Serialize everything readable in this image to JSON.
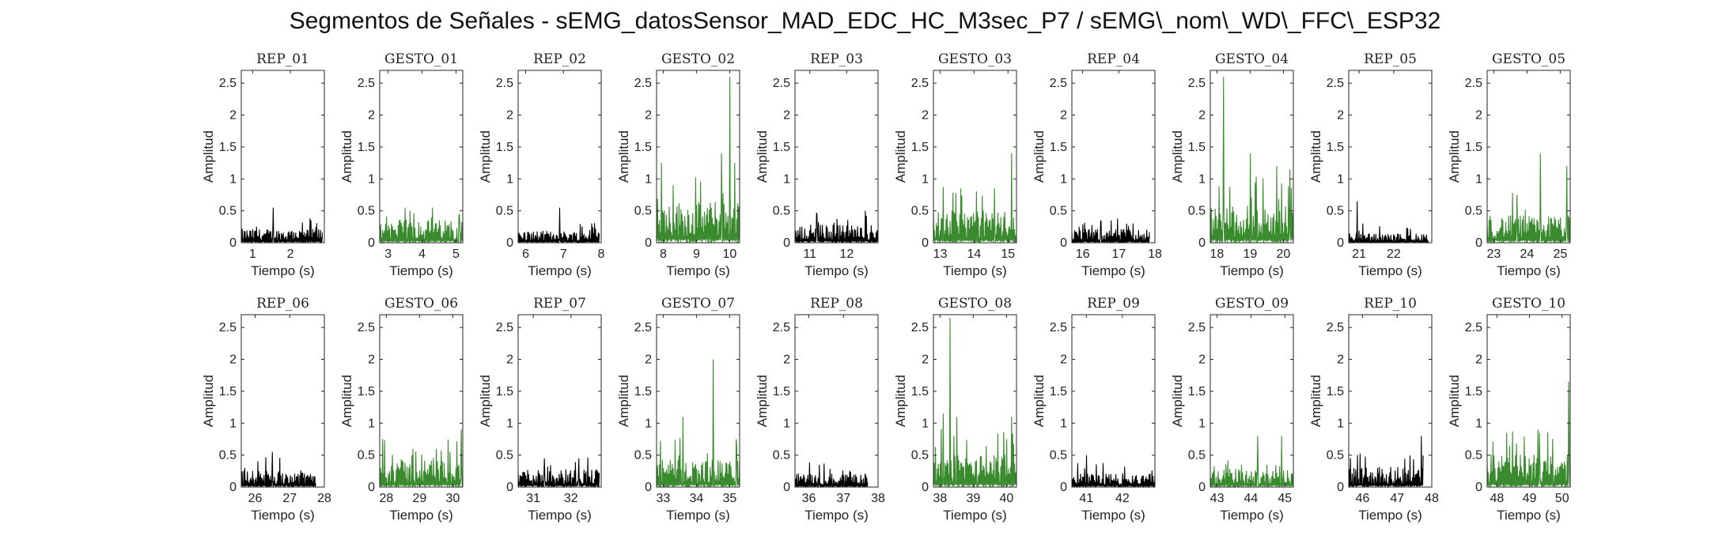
{
  "figure": {
    "title": "Segmentos de Señales - sEMG_datosSensor_MAD_EDC_HC_M3sec_P7 / sEMG\\_nom\\_WD\\_FFC\\_ESP32"
  },
  "colors": {
    "rep": "#000000",
    "gesto": "#3a8a2e",
    "axes": "#262626"
  },
  "chart_data": [
    {
      "type": "line",
      "title": "REP_01",
      "xlabel": "Tiempo (s)",
      "ylabel": "Amplitud",
      "xlim": [
        0.7,
        2.9
      ],
      "ylim": [
        0,
        2.7
      ],
      "xticks": [
        1,
        2
      ],
      "yticks": [
        0,
        0.5,
        1,
        1.5,
        2,
        2.5
      ],
      "series": [
        {
          "color": "#000000",
          "x_range": [
            0.7,
            2.85
          ],
          "baseline": 0.15,
          "peaks": [
            {
              "x": 1.55,
              "y": 0.55
            },
            {
              "x": 2.55,
              "y": 0.35
            }
          ]
        }
      ]
    },
    {
      "type": "line",
      "title": "GESTO_01",
      "xlabel": "Tiempo (s)",
      "ylabel": "Amplitud",
      "xlim": [
        2.75,
        5.2
      ],
      "ylim": [
        0,
        2.7
      ],
      "xticks": [
        3,
        4,
        5
      ],
      "yticks": [
        0,
        0.5,
        1,
        1.5,
        2,
        2.5
      ],
      "series": [
        {
          "color": "#3a8a2e",
          "x_range": [
            2.75,
            5.2
          ],
          "baseline": 0.25,
          "peaks": [
            {
              "x": 3.5,
              "y": 0.55
            },
            {
              "x": 4.3,
              "y": 0.55
            },
            {
              "x": 5.1,
              "y": 0.45
            }
          ]
        }
      ]
    },
    {
      "type": "line",
      "title": "REP_02",
      "xlabel": "Tiempo (s)",
      "ylabel": "Amplitud",
      "xlim": [
        5.8,
        8.0
      ],
      "ylim": [
        0,
        2.7
      ],
      "xticks": [
        6,
        7,
        8
      ],
      "yticks": [
        0,
        0.5,
        1,
        1.5,
        2,
        2.5
      ],
      "series": [
        {
          "color": "#000000",
          "x_range": [
            5.8,
            7.95
          ],
          "baseline": 0.13,
          "peaks": [
            {
              "x": 6.9,
              "y": 0.55
            }
          ]
        }
      ]
    },
    {
      "type": "line",
      "title": "GESTO_02",
      "xlabel": "Tiempo (s)",
      "ylabel": "Amplitud",
      "xlim": [
        7.8,
        10.3
      ],
      "ylim": [
        0,
        2.7
      ],
      "xticks": [
        8,
        9,
        10
      ],
      "yticks": [
        0,
        0.5,
        1,
        1.5,
        2,
        2.5
      ],
      "series": [
        {
          "color": "#3a8a2e",
          "x_range": [
            7.8,
            10.3
          ],
          "baseline": 0.45,
          "peaks": [
            {
              "x": 7.95,
              "y": 1.25
            },
            {
              "x": 8.3,
              "y": 0.9
            },
            {
              "x": 9.75,
              "y": 1.4
            },
            {
              "x": 10.0,
              "y": 2.6
            },
            {
              "x": 10.15,
              "y": 1.25
            }
          ]
        }
      ]
    },
    {
      "type": "line",
      "title": "REP_03",
      "xlabel": "Tiempo (s)",
      "ylabel": "Amplitud",
      "xlim": [
        10.6,
        12.85
      ],
      "ylim": [
        0,
        2.7
      ],
      "xticks": [
        11,
        12
      ],
      "yticks": [
        0,
        0.5,
        1,
        1.5,
        2,
        2.5
      ],
      "series": [
        {
          "color": "#000000",
          "x_range": [
            10.6,
            12.85
          ],
          "baseline": 0.2,
          "peaks": [
            {
              "x": 11.2,
              "y": 0.45
            },
            {
              "x": 12.5,
              "y": 0.5
            }
          ]
        }
      ]
    },
    {
      "type": "line",
      "title": "GESTO_03",
      "xlabel": "Tiempo (s)",
      "ylabel": "Amplitud",
      "xlim": [
        12.8,
        15.25
      ],
      "ylim": [
        0,
        2.7
      ],
      "xticks": [
        13,
        14,
        15
      ],
      "yticks": [
        0,
        0.5,
        1,
        1.5,
        2,
        2.5
      ],
      "series": [
        {
          "color": "#3a8a2e",
          "x_range": [
            12.8,
            15.25
          ],
          "baseline": 0.35,
          "peaks": [
            {
              "x": 13.6,
              "y": 0.85
            },
            {
              "x": 14.6,
              "y": 0.85
            },
            {
              "x": 15.1,
              "y": 1.4
            }
          ]
        }
      ]
    },
    {
      "type": "line",
      "title": "REP_04",
      "xlabel": "Tiempo (s)",
      "ylabel": "Amplitud",
      "xlim": [
        15.7,
        18.0
      ],
      "ylim": [
        0,
        2.7
      ],
      "xticks": [
        16,
        17,
        18
      ],
      "yticks": [
        0,
        0.5,
        1,
        1.5,
        2,
        2.5
      ],
      "series": [
        {
          "color": "#000000",
          "x_range": [
            15.7,
            17.85
          ],
          "baseline": 0.15,
          "peaks": [
            {
              "x": 16.5,
              "y": 0.35
            },
            {
              "x": 17.4,
              "y": 0.3
            }
          ]
        }
      ]
    },
    {
      "type": "line",
      "title": "GESTO_04",
      "xlabel": "Tiempo (s)",
      "ylabel": "Amplitud",
      "xlim": [
        17.8,
        20.3
      ],
      "ylim": [
        0,
        2.7
      ],
      "xticks": [
        18,
        19,
        20
      ],
      "yticks": [
        0,
        0.5,
        1,
        1.5,
        2,
        2.5
      ],
      "series": [
        {
          "color": "#3a8a2e",
          "x_range": [
            17.8,
            20.3
          ],
          "baseline": 0.4,
          "peaks": [
            {
              "x": 18.2,
              "y": 2.6
            },
            {
              "x": 19.0,
              "y": 1.4
            },
            {
              "x": 19.8,
              "y": 1.2
            },
            {
              "x": 20.2,
              "y": 1.15
            }
          ]
        }
      ]
    },
    {
      "type": "line",
      "title": "REP_05",
      "xlabel": "Tiempo (s)",
      "ylabel": "Amplitud",
      "xlim": [
        20.7,
        23.1
      ],
      "ylim": [
        0,
        2.7
      ],
      "xticks": [
        21,
        22
      ],
      "yticks": [
        0,
        0.5,
        1,
        1.5,
        2,
        2.5
      ],
      "series": [
        {
          "color": "#000000",
          "x_range": [
            20.7,
            23.0
          ],
          "baseline": 0.1,
          "peaks": [
            {
              "x": 20.95,
              "y": 0.65
            },
            {
              "x": 21.1,
              "y": 0.3
            }
          ]
        }
      ]
    },
    {
      "type": "line",
      "title": "GESTO_05",
      "xlabel": "Tiempo (s)",
      "ylabel": "Amplitud",
      "xlim": [
        22.8,
        25.3
      ],
      "ylim": [
        0,
        2.7
      ],
      "xticks": [
        23,
        24,
        25
      ],
      "yticks": [
        0,
        0.5,
        1,
        1.5,
        2,
        2.5
      ],
      "series": [
        {
          "color": "#3a8a2e",
          "x_range": [
            22.8,
            25.3
          ],
          "baseline": 0.3,
          "peaks": [
            {
              "x": 23.7,
              "y": 0.75
            },
            {
              "x": 24.4,
              "y": 1.4
            },
            {
              "x": 25.2,
              "y": 1.2
            }
          ]
        }
      ]
    },
    {
      "type": "line",
      "title": "REP_06",
      "xlabel": "Tiempo (s)",
      "ylabel": "Amplitud",
      "xlim": [
        25.6,
        28.0
      ],
      "ylim": [
        0,
        2.7
      ],
      "xticks": [
        26,
        27,
        28
      ],
      "yticks": [
        0,
        0.5,
        1,
        1.5,
        2,
        2.5
      ],
      "series": [
        {
          "color": "#000000",
          "x_range": [
            25.6,
            27.75
          ],
          "baseline": 0.18,
          "peaks": [
            {
              "x": 26.5,
              "y": 0.55
            }
          ]
        }
      ]
    },
    {
      "type": "line",
      "title": "GESTO_06",
      "xlabel": "Tiempo (s)",
      "ylabel": "Amplitud",
      "xlim": [
        27.8,
        30.3
      ],
      "ylim": [
        0,
        2.7
      ],
      "xticks": [
        28,
        29,
        30
      ],
      "yticks": [
        0,
        0.5,
        1,
        1.5,
        2,
        2.5
      ],
      "series": [
        {
          "color": "#3a8a2e",
          "x_range": [
            27.8,
            30.3
          ],
          "baseline": 0.3,
          "peaks": [
            {
              "x": 28.8,
              "y": 0.6
            },
            {
              "x": 29.5,
              "y": 0.6
            },
            {
              "x": 30.25,
              "y": 0.9
            }
          ]
        }
      ]
    },
    {
      "type": "line",
      "title": "REP_07",
      "xlabel": "Tiempo (s)",
      "ylabel": "Amplitud",
      "xlim": [
        30.6,
        32.8
      ],
      "ylim": [
        0,
        2.7
      ],
      "xticks": [
        31,
        32
      ],
      "yticks": [
        0,
        0.5,
        1,
        1.5,
        2,
        2.5
      ],
      "series": [
        {
          "color": "#000000",
          "x_range": [
            30.6,
            32.75
          ],
          "baseline": 0.2,
          "peaks": [
            {
              "x": 31.3,
              "y": 0.45
            },
            {
              "x": 32.2,
              "y": 0.45
            }
          ]
        }
      ]
    },
    {
      "type": "line",
      "title": "GESTO_07",
      "xlabel": "Tiempo (s)",
      "ylabel": "Amplitud",
      "xlim": [
        32.8,
        35.3
      ],
      "ylim": [
        0,
        2.7
      ],
      "xticks": [
        33,
        34,
        35
      ],
      "yticks": [
        0,
        0.5,
        1,
        1.5,
        2,
        2.5
      ],
      "series": [
        {
          "color": "#3a8a2e",
          "x_range": [
            32.8,
            35.3
          ],
          "baseline": 0.3,
          "peaks": [
            {
              "x": 33.6,
              "y": 1.1
            },
            {
              "x": 34.5,
              "y": 2.0
            },
            {
              "x": 35.2,
              "y": 0.75
            }
          ]
        }
      ]
    },
    {
      "type": "line",
      "title": "REP_08",
      "xlabel": "Tiempo (s)",
      "ylabel": "Amplitud",
      "xlim": [
        35.6,
        38.0
      ],
      "ylim": [
        0,
        2.7
      ],
      "xticks": [
        36,
        37,
        38
      ],
      "yticks": [
        0,
        0.5,
        1,
        1.5,
        2,
        2.5
      ],
      "series": [
        {
          "color": "#000000",
          "x_range": [
            35.6,
            37.7
          ],
          "baseline": 0.15,
          "peaks": [
            {
              "x": 36.3,
              "y": 0.35
            }
          ]
        }
      ]
    },
    {
      "type": "line",
      "title": "GESTO_08",
      "xlabel": "Tiempo (s)",
      "ylabel": "Amplitud",
      "xlim": [
        37.8,
        40.3
      ],
      "ylim": [
        0,
        2.7
      ],
      "xticks": [
        38,
        39,
        40
      ],
      "yticks": [
        0,
        0.5,
        1,
        1.5,
        2,
        2.5
      ],
      "series": [
        {
          "color": "#3a8a2e",
          "x_range": [
            37.8,
            40.3
          ],
          "baseline": 0.35,
          "peaks": [
            {
              "x": 38.1,
              "y": 1.15
            },
            {
              "x": 38.3,
              "y": 2.65
            },
            {
              "x": 38.5,
              "y": 1.1
            },
            {
              "x": 40.15,
              "y": 1.1
            }
          ]
        }
      ]
    },
    {
      "type": "line",
      "title": "REP_09",
      "xlabel": "Tiempo (s)",
      "ylabel": "Amplitud",
      "xlim": [
        40.6,
        42.9
      ],
      "ylim": [
        0,
        2.7
      ],
      "xticks": [
        41,
        42
      ],
      "yticks": [
        0,
        0.5,
        1,
        1.5,
        2,
        2.5
      ],
      "series": [
        {
          "color": "#000000",
          "x_range": [
            40.6,
            42.9
          ],
          "baseline": 0.15,
          "peaks": [
            {
              "x": 41.0,
              "y": 0.5
            }
          ]
        }
      ]
    },
    {
      "type": "line",
      "title": "GESTO_09",
      "xlabel": "Tiempo (s)",
      "ylabel": "Amplitud",
      "xlim": [
        42.8,
        45.25
      ],
      "ylim": [
        0,
        2.7
      ],
      "xticks": [
        43,
        44,
        45
      ],
      "yticks": [
        0,
        0.5,
        1,
        1.5,
        2,
        2.5
      ],
      "series": [
        {
          "color": "#3a8a2e",
          "x_range": [
            42.8,
            45.25
          ],
          "baseline": 0.2,
          "peaks": [
            {
              "x": 44.2,
              "y": 0.8
            },
            {
              "x": 44.9,
              "y": 0.8
            }
          ]
        }
      ]
    },
    {
      "type": "line",
      "title": "REP_10",
      "xlabel": "Tiempo (s)",
      "ylabel": "Amplitud",
      "xlim": [
        45.6,
        48.0
      ],
      "ylim": [
        0,
        2.7
      ],
      "xticks": [
        46,
        47,
        48
      ],
      "yticks": [
        0,
        0.5,
        1,
        1.5,
        2,
        2.5
      ],
      "series": [
        {
          "color": "#000000",
          "x_range": [
            45.6,
            47.75
          ],
          "baseline": 0.22,
          "peaks": [
            {
              "x": 47.7,
              "y": 0.8
            }
          ]
        }
      ]
    },
    {
      "type": "line",
      "title": "GESTO_10",
      "xlabel": "Tiempo (s)",
      "ylabel": "Amplitud",
      "xlim": [
        47.7,
        50.25
      ],
      "ylim": [
        0,
        2.7
      ],
      "xticks": [
        48,
        49,
        50
      ],
      "yticks": [
        0,
        0.5,
        1,
        1.5,
        2,
        2.5
      ],
      "series": [
        {
          "color": "#3a8a2e",
          "x_range": [
            47.7,
            50.25
          ],
          "baseline": 0.35,
          "peaks": [
            {
              "x": 48.3,
              "y": 0.85
            },
            {
              "x": 49.3,
              "y": 0.85
            },
            {
              "x": 50.2,
              "y": 1.65
            }
          ]
        }
      ]
    }
  ]
}
